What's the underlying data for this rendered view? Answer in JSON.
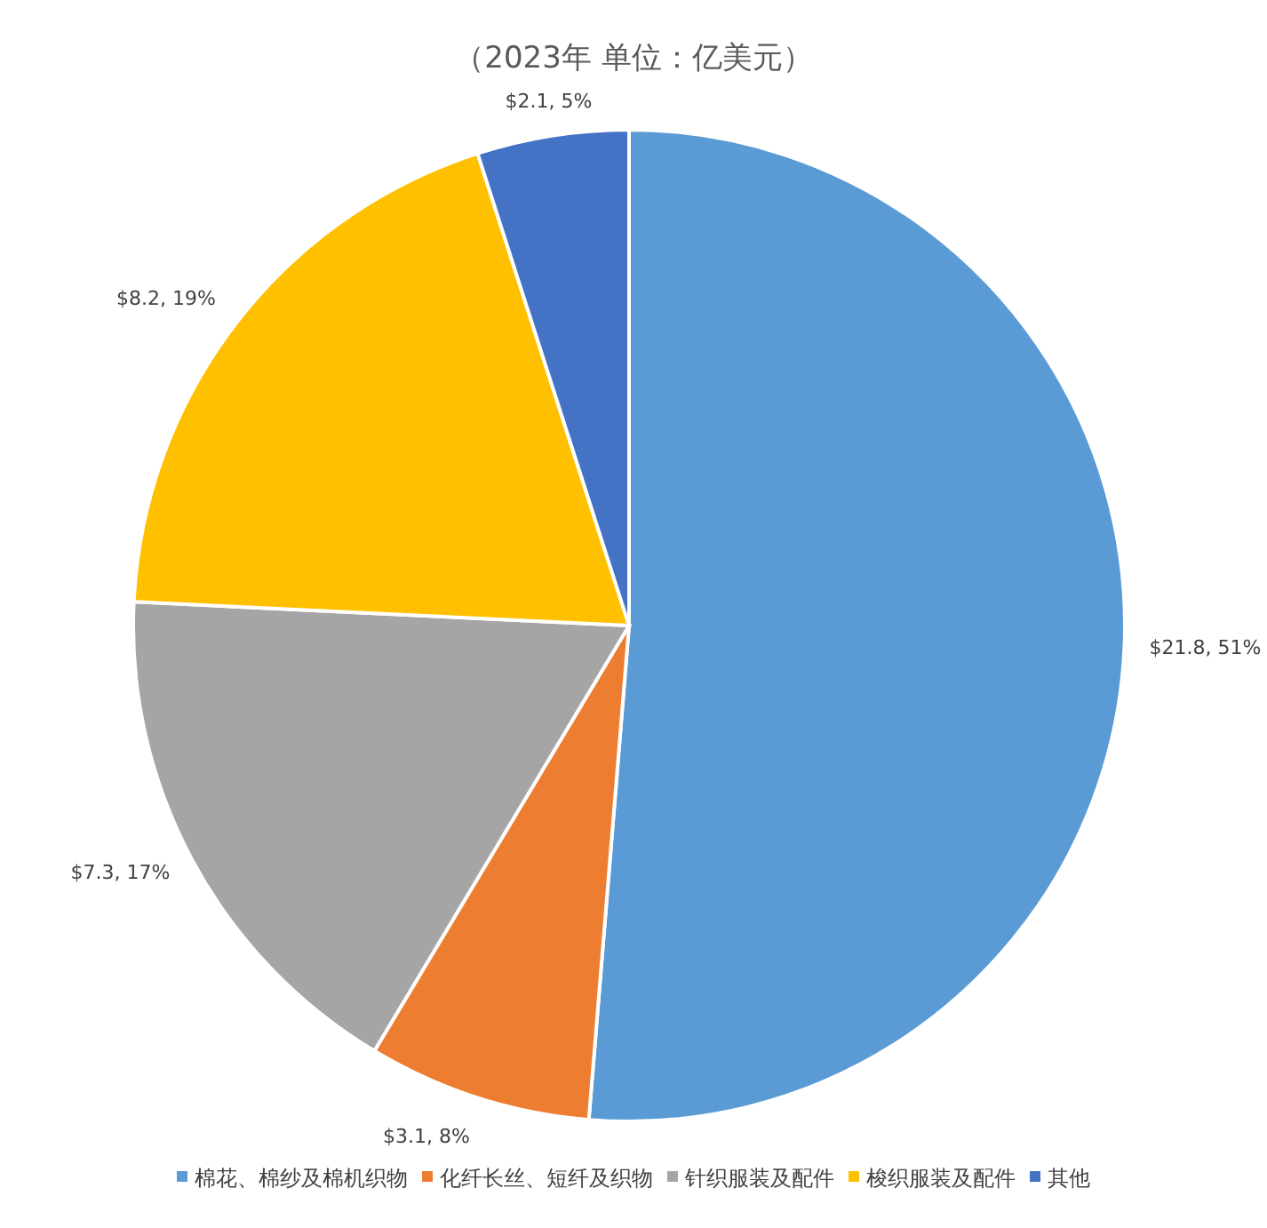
{
  "chart_data": {
    "type": "pie",
    "title": "（2023年 单位：亿美元）",
    "categories": [
      "棉花、棉纱及棉机织物",
      "化纤长丝、短纤及织物",
      "针织服装及配件",
      "梭织服装及配件",
      "其他"
    ],
    "values": [
      21.8,
      3.1,
      7.3,
      8.2,
      2.1
    ],
    "colors": [
      "#5b9bd5",
      "#ed7d31",
      "#a5a5a5",
      "#ffc000",
      "#4472c4"
    ],
    "value_labels": [
      "$21.8, 51%",
      "$3.1, 8%",
      "$7.3, 17%",
      "$8.2, 19%",
      "$2.1, 5%"
    ],
    "legend": "bottom"
  }
}
